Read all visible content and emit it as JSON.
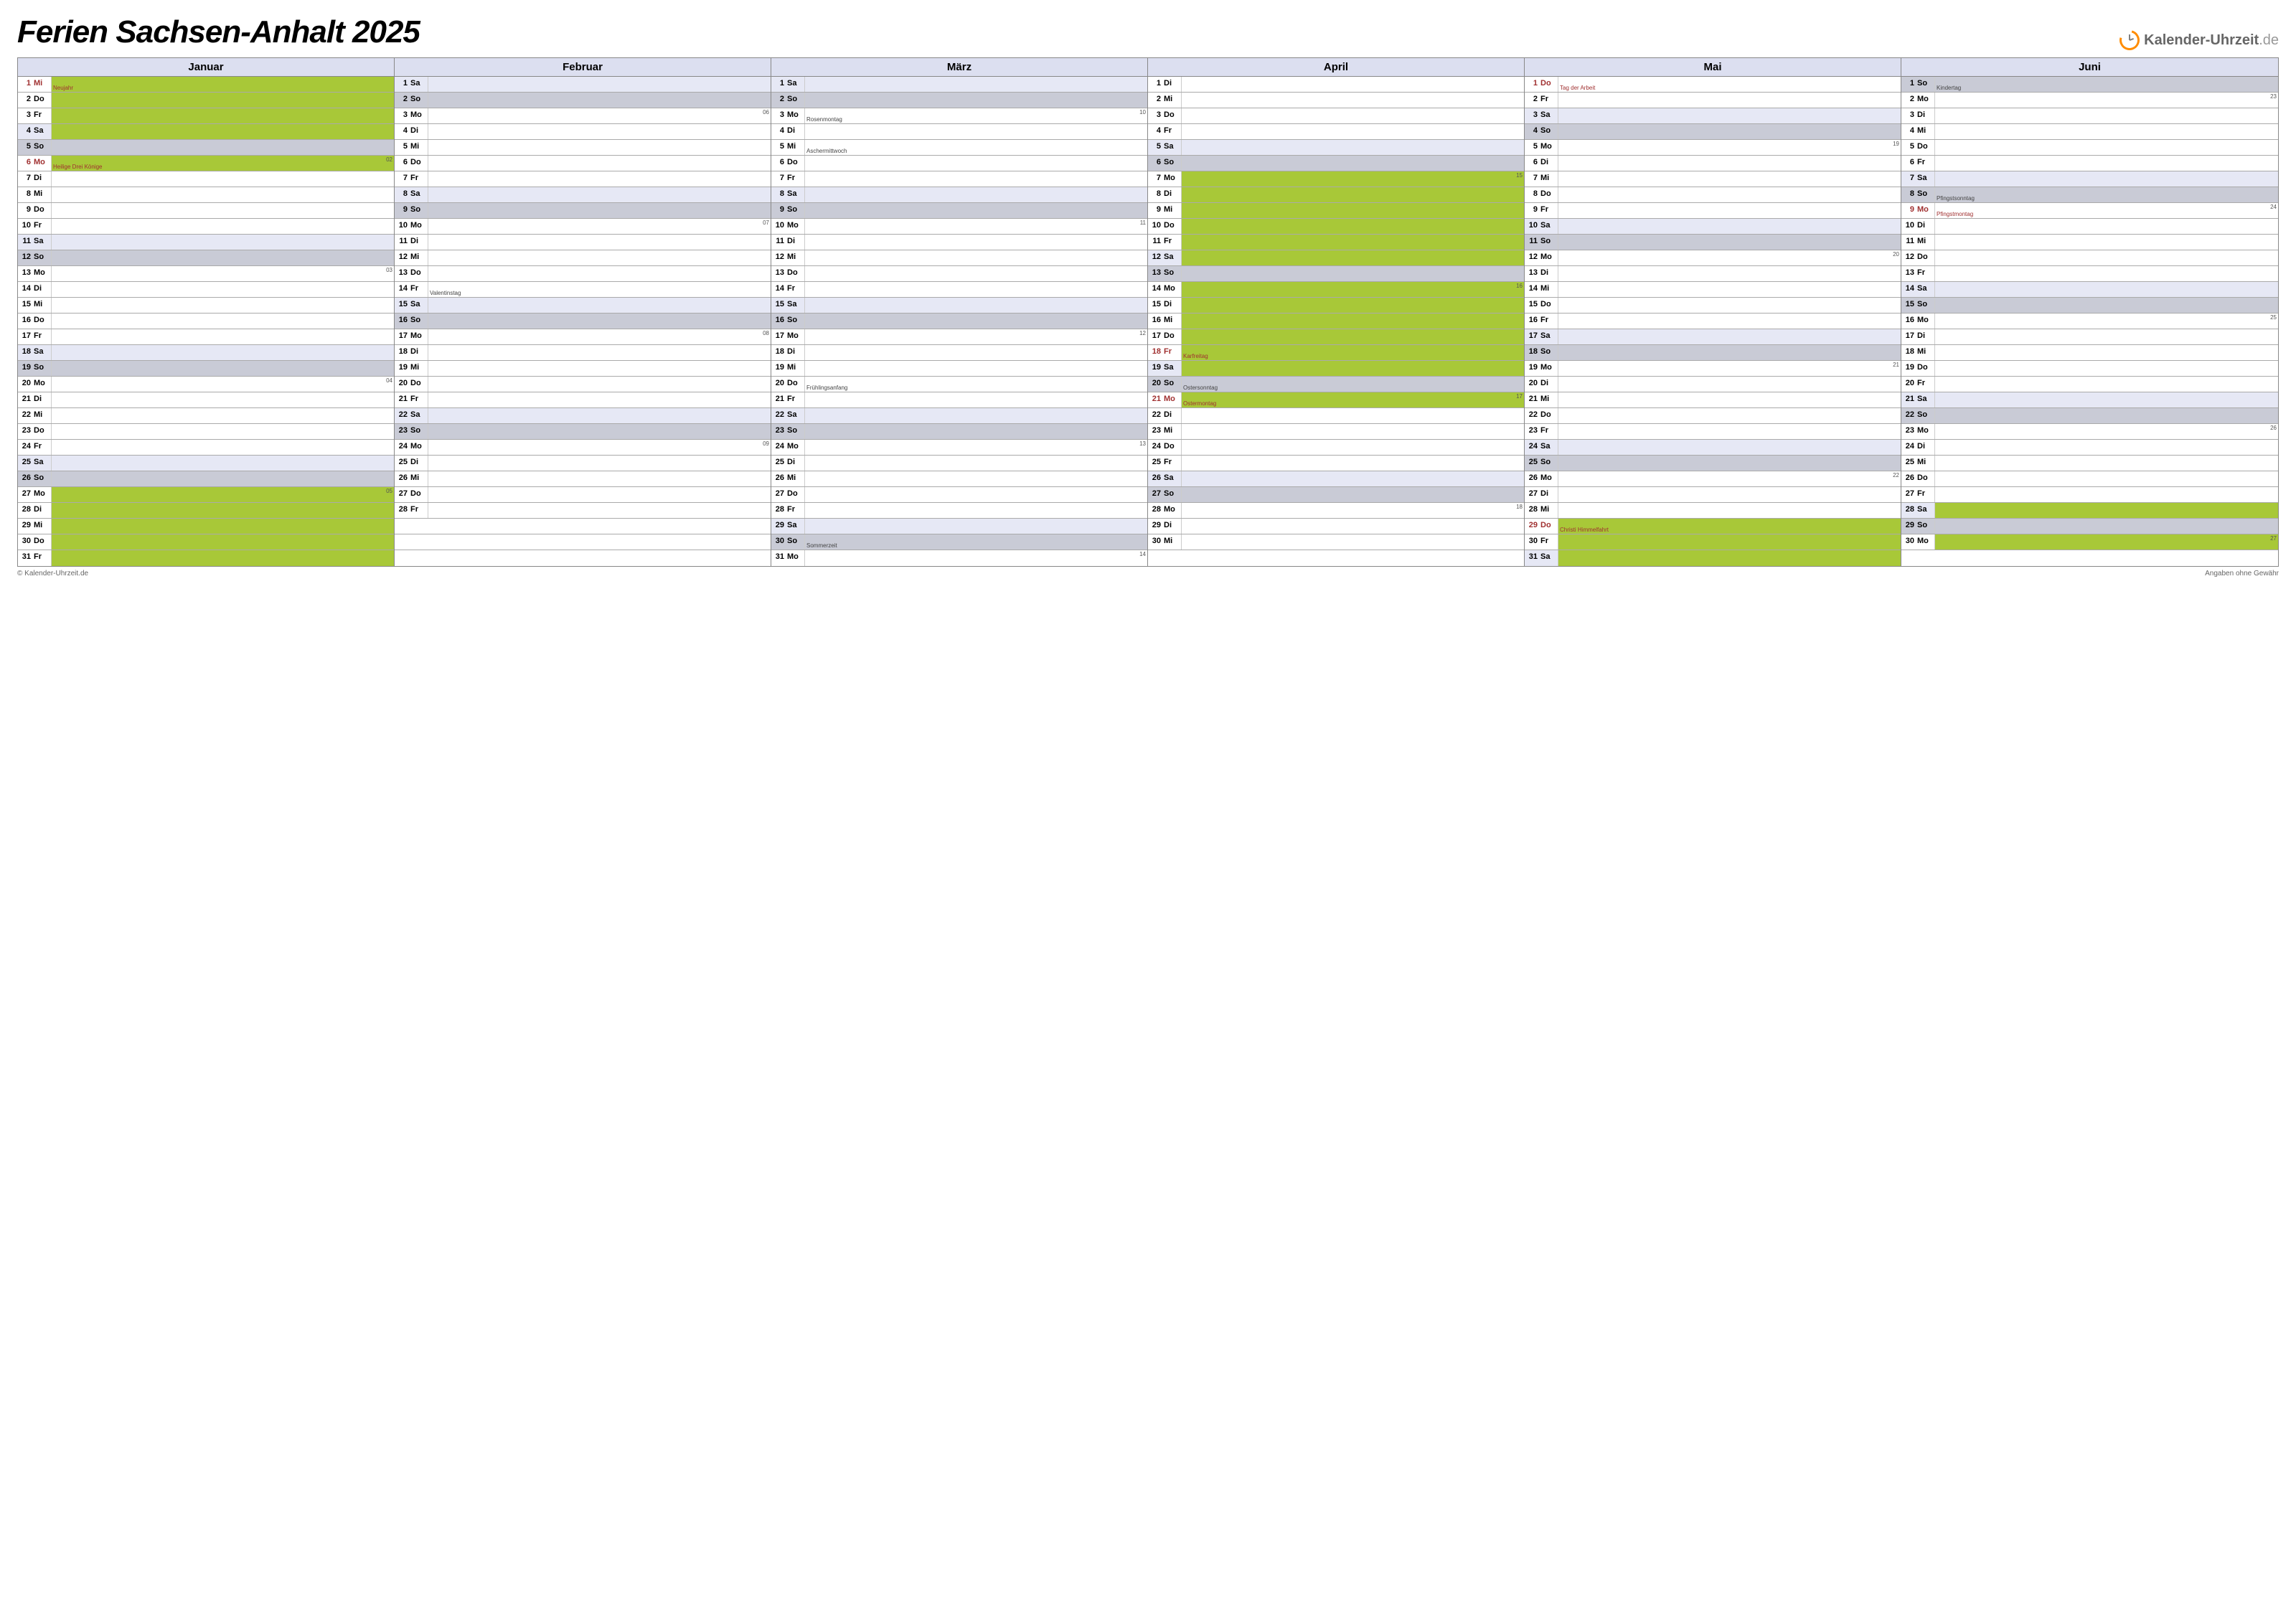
{
  "title": "Ferien Sachsen-Anhalt 2025",
  "brand": {
    "name": "Kalender-Uhrzeit",
    "tld": ".de"
  },
  "footer_left": "© Kalender-Uhrzeit.de",
  "footer_right": "Angaben ohne Gewähr",
  "colors": {
    "header_bg": "#dcdff0",
    "sat_bg": "#e6e8f5",
    "sun_bg": "#c9cbd6",
    "vacation_bg": "#a8c838",
    "holiday_text": "#a03030",
    "brand_accent": "#ff8c00"
  },
  "weekdays": [
    "Mo",
    "Di",
    "Mi",
    "Do",
    "Fr",
    "Sa",
    "So"
  ],
  "months": [
    {
      "name": "Januar",
      "days": [
        {
          "d": 1,
          "w": "Mi",
          "note": "Neujahr",
          "hol": true,
          "vac": true
        },
        {
          "d": 2,
          "w": "Do",
          "vac": true
        },
        {
          "d": 3,
          "w": "Fr",
          "vac": true
        },
        {
          "d": 4,
          "w": "Sa",
          "vac": true
        },
        {
          "d": 5,
          "w": "So"
        },
        {
          "d": 6,
          "w": "Mo",
          "note": "Heilige Drei Könige",
          "hol": true,
          "vac": true,
          "wk": "02"
        },
        {
          "d": 7,
          "w": "Di"
        },
        {
          "d": 8,
          "w": "Mi"
        },
        {
          "d": 9,
          "w": "Do"
        },
        {
          "d": 10,
          "w": "Fr"
        },
        {
          "d": 11,
          "w": "Sa"
        },
        {
          "d": 12,
          "w": "So"
        },
        {
          "d": 13,
          "w": "Mo",
          "wk": "03"
        },
        {
          "d": 14,
          "w": "Di"
        },
        {
          "d": 15,
          "w": "Mi"
        },
        {
          "d": 16,
          "w": "Do"
        },
        {
          "d": 17,
          "w": "Fr"
        },
        {
          "d": 18,
          "w": "Sa"
        },
        {
          "d": 19,
          "w": "So"
        },
        {
          "d": 20,
          "w": "Mo",
          "wk": "04"
        },
        {
          "d": 21,
          "w": "Di"
        },
        {
          "d": 22,
          "w": "Mi"
        },
        {
          "d": 23,
          "w": "Do"
        },
        {
          "d": 24,
          "w": "Fr"
        },
        {
          "d": 25,
          "w": "Sa"
        },
        {
          "d": 26,
          "w": "So"
        },
        {
          "d": 27,
          "w": "Mo",
          "vac": true,
          "wk": "05"
        },
        {
          "d": 28,
          "w": "Di",
          "vac": true
        },
        {
          "d": 29,
          "w": "Mi",
          "vac": true
        },
        {
          "d": 30,
          "w": "Do",
          "vac": true
        },
        {
          "d": 31,
          "w": "Fr",
          "vac": true
        }
      ]
    },
    {
      "name": "Februar",
      "days": [
        {
          "d": 1,
          "w": "Sa"
        },
        {
          "d": 2,
          "w": "So"
        },
        {
          "d": 3,
          "w": "Mo",
          "wk": "06"
        },
        {
          "d": 4,
          "w": "Di"
        },
        {
          "d": 5,
          "w": "Mi"
        },
        {
          "d": 6,
          "w": "Do"
        },
        {
          "d": 7,
          "w": "Fr"
        },
        {
          "d": 8,
          "w": "Sa"
        },
        {
          "d": 9,
          "w": "So"
        },
        {
          "d": 10,
          "w": "Mo",
          "wk": "07"
        },
        {
          "d": 11,
          "w": "Di"
        },
        {
          "d": 12,
          "w": "Mi"
        },
        {
          "d": 13,
          "w": "Do"
        },
        {
          "d": 14,
          "w": "Fr",
          "note": "Valentinstag"
        },
        {
          "d": 15,
          "w": "Sa"
        },
        {
          "d": 16,
          "w": "So"
        },
        {
          "d": 17,
          "w": "Mo",
          "wk": "08"
        },
        {
          "d": 18,
          "w": "Di"
        },
        {
          "d": 19,
          "w": "Mi"
        },
        {
          "d": 20,
          "w": "Do"
        },
        {
          "d": 21,
          "w": "Fr"
        },
        {
          "d": 22,
          "w": "Sa"
        },
        {
          "d": 23,
          "w": "So"
        },
        {
          "d": 24,
          "w": "Mo",
          "wk": "09"
        },
        {
          "d": 25,
          "w": "Di"
        },
        {
          "d": 26,
          "w": "Mi"
        },
        {
          "d": 27,
          "w": "Do"
        },
        {
          "d": 28,
          "w": "Fr"
        }
      ]
    },
    {
      "name": "März",
      "days": [
        {
          "d": 1,
          "w": "Sa"
        },
        {
          "d": 2,
          "w": "So"
        },
        {
          "d": 3,
          "w": "Mo",
          "note": "Rosenmontag",
          "wk": "10"
        },
        {
          "d": 4,
          "w": "Di"
        },
        {
          "d": 5,
          "w": "Mi",
          "note": "Aschermittwoch"
        },
        {
          "d": 6,
          "w": "Do"
        },
        {
          "d": 7,
          "w": "Fr"
        },
        {
          "d": 8,
          "w": "Sa"
        },
        {
          "d": 9,
          "w": "So"
        },
        {
          "d": 10,
          "w": "Mo",
          "wk": "11"
        },
        {
          "d": 11,
          "w": "Di"
        },
        {
          "d": 12,
          "w": "Mi"
        },
        {
          "d": 13,
          "w": "Do"
        },
        {
          "d": 14,
          "w": "Fr"
        },
        {
          "d": 15,
          "w": "Sa"
        },
        {
          "d": 16,
          "w": "So"
        },
        {
          "d": 17,
          "w": "Mo",
          "wk": "12"
        },
        {
          "d": 18,
          "w": "Di"
        },
        {
          "d": 19,
          "w": "Mi"
        },
        {
          "d": 20,
          "w": "Do",
          "note": "Frühlingsanfang"
        },
        {
          "d": 21,
          "w": "Fr"
        },
        {
          "d": 22,
          "w": "Sa"
        },
        {
          "d": 23,
          "w": "So"
        },
        {
          "d": 24,
          "w": "Mo",
          "wk": "13"
        },
        {
          "d": 25,
          "w": "Di"
        },
        {
          "d": 26,
          "w": "Mi"
        },
        {
          "d": 27,
          "w": "Do"
        },
        {
          "d": 28,
          "w": "Fr"
        },
        {
          "d": 29,
          "w": "Sa"
        },
        {
          "d": 30,
          "w": "So",
          "note": "Sommerzeit"
        },
        {
          "d": 31,
          "w": "Mo",
          "wk": "14"
        }
      ]
    },
    {
      "name": "April",
      "days": [
        {
          "d": 1,
          "w": "Di"
        },
        {
          "d": 2,
          "w": "Mi"
        },
        {
          "d": 3,
          "w": "Do"
        },
        {
          "d": 4,
          "w": "Fr"
        },
        {
          "d": 5,
          "w": "Sa"
        },
        {
          "d": 6,
          "w": "So"
        },
        {
          "d": 7,
          "w": "Mo",
          "vac": true,
          "wk": "15"
        },
        {
          "d": 8,
          "w": "Di",
          "vac": true
        },
        {
          "d": 9,
          "w": "Mi",
          "vac": true
        },
        {
          "d": 10,
          "w": "Do",
          "vac": true
        },
        {
          "d": 11,
          "w": "Fr",
          "vac": true
        },
        {
          "d": 12,
          "w": "Sa",
          "vac": true
        },
        {
          "d": 13,
          "w": "So"
        },
        {
          "d": 14,
          "w": "Mo",
          "vac": true,
          "wk": "16"
        },
        {
          "d": 15,
          "w": "Di",
          "vac": true
        },
        {
          "d": 16,
          "w": "Mi",
          "vac": true
        },
        {
          "d": 17,
          "w": "Do",
          "vac": true
        },
        {
          "d": 18,
          "w": "Fr",
          "note": "Karfreitag",
          "hol": true,
          "vac": true
        },
        {
          "d": 19,
          "w": "Sa",
          "vac": true
        },
        {
          "d": 20,
          "w": "So",
          "note": "Ostersonntag"
        },
        {
          "d": 21,
          "w": "Mo",
          "note": "Ostermontag",
          "hol": true,
          "vac": true,
          "wk": "17"
        },
        {
          "d": 22,
          "w": "Di"
        },
        {
          "d": 23,
          "w": "Mi"
        },
        {
          "d": 24,
          "w": "Do"
        },
        {
          "d": 25,
          "w": "Fr"
        },
        {
          "d": 26,
          "w": "Sa"
        },
        {
          "d": 27,
          "w": "So"
        },
        {
          "d": 28,
          "w": "Mo",
          "wk": "18"
        },
        {
          "d": 29,
          "w": "Di"
        },
        {
          "d": 30,
          "w": "Mi"
        }
      ]
    },
    {
      "name": "Mai",
      "days": [
        {
          "d": 1,
          "w": "Do",
          "note": "Tag der Arbeit",
          "hol": true
        },
        {
          "d": 2,
          "w": "Fr"
        },
        {
          "d": 3,
          "w": "Sa"
        },
        {
          "d": 4,
          "w": "So"
        },
        {
          "d": 5,
          "w": "Mo",
          "wk": "19"
        },
        {
          "d": 6,
          "w": "Di"
        },
        {
          "d": 7,
          "w": "Mi"
        },
        {
          "d": 8,
          "w": "Do"
        },
        {
          "d": 9,
          "w": "Fr"
        },
        {
          "d": 10,
          "w": "Sa"
        },
        {
          "d": 11,
          "w": "So"
        },
        {
          "d": 12,
          "w": "Mo",
          "wk": "20"
        },
        {
          "d": 13,
          "w": "Di"
        },
        {
          "d": 14,
          "w": "Mi"
        },
        {
          "d": 15,
          "w": "Do"
        },
        {
          "d": 16,
          "w": "Fr"
        },
        {
          "d": 17,
          "w": "Sa"
        },
        {
          "d": 18,
          "w": "So"
        },
        {
          "d": 19,
          "w": "Mo",
          "wk": "21"
        },
        {
          "d": 20,
          "w": "Di"
        },
        {
          "d": 21,
          "w": "Mi"
        },
        {
          "d": 22,
          "w": "Do"
        },
        {
          "d": 23,
          "w": "Fr"
        },
        {
          "d": 24,
          "w": "Sa"
        },
        {
          "d": 25,
          "w": "So"
        },
        {
          "d": 26,
          "w": "Mo",
          "wk": "22"
        },
        {
          "d": 27,
          "w": "Di"
        },
        {
          "d": 28,
          "w": "Mi"
        },
        {
          "d": 29,
          "w": "Do",
          "note": "Christi Himmelfahrt",
          "hol": true,
          "vac": true
        },
        {
          "d": 30,
          "w": "Fr",
          "vac": true
        },
        {
          "d": 31,
          "w": "Sa",
          "vac": true
        }
      ]
    },
    {
      "name": "Juni",
      "days": [
        {
          "d": 1,
          "w": "So",
          "note": "Kindertag"
        },
        {
          "d": 2,
          "w": "Mo",
          "wk": "23"
        },
        {
          "d": 3,
          "w": "Di"
        },
        {
          "d": 4,
          "w": "Mi"
        },
        {
          "d": 5,
          "w": "Do"
        },
        {
          "d": 6,
          "w": "Fr"
        },
        {
          "d": 7,
          "w": "Sa"
        },
        {
          "d": 8,
          "w": "So",
          "note": "Pfingstsonntag"
        },
        {
          "d": 9,
          "w": "Mo",
          "note": "Pfingstmontag",
          "hol": true,
          "wk": "24"
        },
        {
          "d": 10,
          "w": "Di"
        },
        {
          "d": 11,
          "w": "Mi"
        },
        {
          "d": 12,
          "w": "Do"
        },
        {
          "d": 13,
          "w": "Fr"
        },
        {
          "d": 14,
          "w": "Sa"
        },
        {
          "d": 15,
          "w": "So"
        },
        {
          "d": 16,
          "w": "Mo",
          "wk": "25"
        },
        {
          "d": 17,
          "w": "Di"
        },
        {
          "d": 18,
          "w": "Mi"
        },
        {
          "d": 19,
          "w": "Do"
        },
        {
          "d": 20,
          "w": "Fr"
        },
        {
          "d": 21,
          "w": "Sa"
        },
        {
          "d": 22,
          "w": "So"
        },
        {
          "d": 23,
          "w": "Mo",
          "wk": "26"
        },
        {
          "d": 24,
          "w": "Di"
        },
        {
          "d": 25,
          "w": "Mi"
        },
        {
          "d": 26,
          "w": "Do"
        },
        {
          "d": 27,
          "w": "Fr"
        },
        {
          "d": 28,
          "w": "Sa",
          "vac": true
        },
        {
          "d": 29,
          "w": "So"
        },
        {
          "d": 30,
          "w": "Mo",
          "vac": true,
          "wk": "27"
        }
      ]
    }
  ]
}
